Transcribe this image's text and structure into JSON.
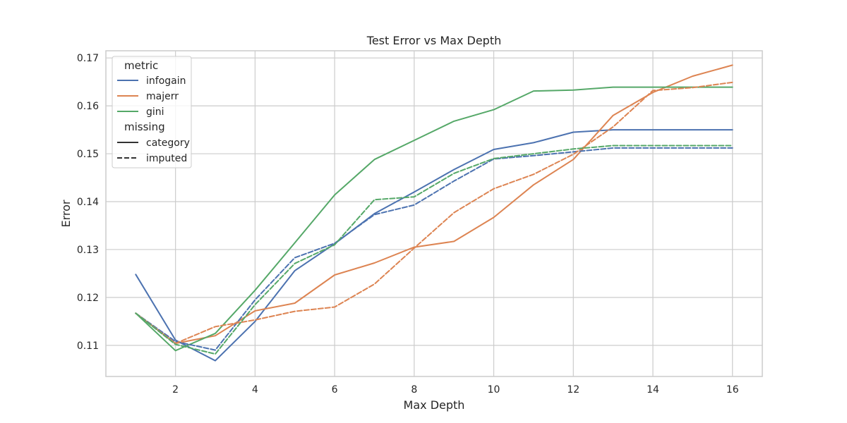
{
  "chart_data": {
    "type": "line",
    "title": "Test Error vs Max Depth",
    "xlabel": "Max Depth",
    "ylabel": "Error",
    "xlim": [
      0.25,
      16.75
    ],
    "ylim": [
      0.1035,
      0.1715
    ],
    "xticks": [
      2,
      4,
      6,
      8,
      10,
      12,
      14,
      16
    ],
    "yticks": [
      0.11,
      0.12,
      0.13,
      0.14,
      0.15,
      0.16,
      0.17
    ],
    "ytick_labels": [
      "0.11",
      "0.12",
      "0.13",
      "0.14",
      "0.15",
      "0.16",
      "0.17"
    ],
    "grid": true,
    "legend": {
      "placement": "top-left",
      "color_title": "metric",
      "style_title": "missing",
      "metrics": [
        {
          "label": "infogain",
          "color": "#4c72b0"
        },
        {
          "label": "majerr",
          "color": "#dd8452"
        },
        {
          "label": "gini",
          "color": "#55a868"
        }
      ],
      "styles": [
        {
          "label": "category",
          "dash": "solid"
        },
        {
          "label": "imputed",
          "dash": "dashed"
        }
      ]
    },
    "x": [
      1,
      2,
      3,
      4,
      5,
      6,
      7,
      8,
      9,
      10,
      11,
      12,
      13,
      14,
      15,
      16
    ],
    "series": [
      {
        "metric": "infogain",
        "missing": "category",
        "color": "#4c72b0",
        "dash": "solid",
        "values": [
          0.1248,
          0.1111,
          0.1068,
          0.115,
          0.1256,
          0.1312,
          0.1375,
          0.142,
          0.1467,
          0.1509,
          0.1523,
          0.1545,
          0.155,
          0.155,
          0.155,
          0.155
        ]
      },
      {
        "metric": "majerr",
        "missing": "category",
        "color": "#dd8452",
        "dash": "solid",
        "values": [
          0.1167,
          0.1104,
          0.112,
          0.1172,
          0.1188,
          0.1247,
          0.1272,
          0.1305,
          0.1317,
          0.1367,
          0.1435,
          0.1488,
          0.158,
          0.1628,
          0.1662,
          0.1685
        ]
      },
      {
        "metric": "gini",
        "missing": "category",
        "color": "#55a868",
        "dash": "solid",
        "values": [
          0.1167,
          0.1089,
          0.1125,
          0.1215,
          0.1314,
          0.1414,
          0.1488,
          0.1528,
          0.1568,
          0.1592,
          0.1631,
          0.1633,
          0.1639,
          0.1639,
          0.1639,
          0.1639
        ]
      },
      {
        "metric": "infogain",
        "missing": "imputed",
        "color": "#4c72b0",
        "dash": "dashed",
        "values": [
          0.1167,
          0.1108,
          0.109,
          0.1195,
          0.1283,
          0.1313,
          0.1373,
          0.1393,
          0.1443,
          0.1489,
          0.1496,
          0.1504,
          0.1512,
          0.1512,
          0.1512,
          0.1512
        ]
      },
      {
        "metric": "majerr",
        "missing": "imputed",
        "color": "#dd8452",
        "dash": "dashed",
        "values": [
          0.1167,
          0.1104,
          0.1139,
          0.1153,
          0.1171,
          0.118,
          0.1228,
          0.1303,
          0.1377,
          0.1427,
          0.1457,
          0.1499,
          0.1556,
          0.1632,
          0.1638,
          0.1649
        ]
      },
      {
        "metric": "gini",
        "missing": "imputed",
        "color": "#55a868",
        "dash": "dashed",
        "values": [
          0.1167,
          0.1102,
          0.1082,
          0.1185,
          0.1271,
          0.131,
          0.1404,
          0.141,
          0.1459,
          0.149,
          0.15,
          0.151,
          0.1517,
          0.1517,
          0.1517,
          0.1517
        ]
      }
    ]
  }
}
